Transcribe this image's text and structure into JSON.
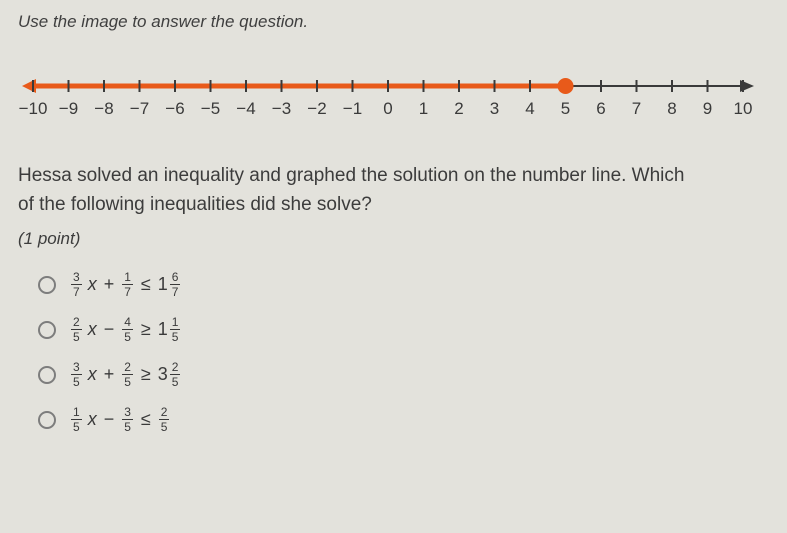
{
  "instruction": "Use the image to answer the question.",
  "question_line1": "Hessa solved an inequality and graphed the solution on the number line. Which",
  "question_line2": "of the following inequalities did she solve?",
  "points_text": "(1 point)",
  "numberline": {
    "min": -10,
    "max": 10,
    "ticks": [
      -10,
      -9,
      -8,
      -7,
      -6,
      -5,
      -4,
      -3,
      -2,
      -1,
      0,
      1,
      2,
      3,
      4,
      5,
      6,
      7,
      8,
      9,
      10
    ],
    "shaded_from": -10,
    "shaded_to": 5,
    "closed_point": 5,
    "line_color": "#e85a1a",
    "axis_color": "#3a3a3a",
    "background": "#e3e2dc",
    "tick_width": 2,
    "line_width": 5,
    "tick_fontsize": 17,
    "point_radius": 8
  },
  "options": [
    {
      "coef_n": "3",
      "coef_d": "7",
      "var": "x",
      "op1": "+",
      "t1_n": "1",
      "t1_d": "7",
      "rel": "≤",
      "whole": "1",
      "r_n": "6",
      "r_d": "7"
    },
    {
      "coef_n": "2",
      "coef_d": "5",
      "var": "x",
      "op1": "−",
      "t1_n": "4",
      "t1_d": "5",
      "rel": "≥",
      "whole": "1",
      "r_n": "1",
      "r_d": "5"
    },
    {
      "coef_n": "3",
      "coef_d": "5",
      "var": "x",
      "op1": "+",
      "t1_n": "2",
      "t1_d": "5",
      "rel": "≥",
      "whole": "3",
      "r_n": "2",
      "r_d": "5"
    },
    {
      "coef_n": "1",
      "coef_d": "5",
      "var": "x",
      "op1": "−",
      "t1_n": "3",
      "t1_d": "5",
      "rel": "≤",
      "whole": "",
      "r_n": "2",
      "r_d": "5"
    }
  ]
}
